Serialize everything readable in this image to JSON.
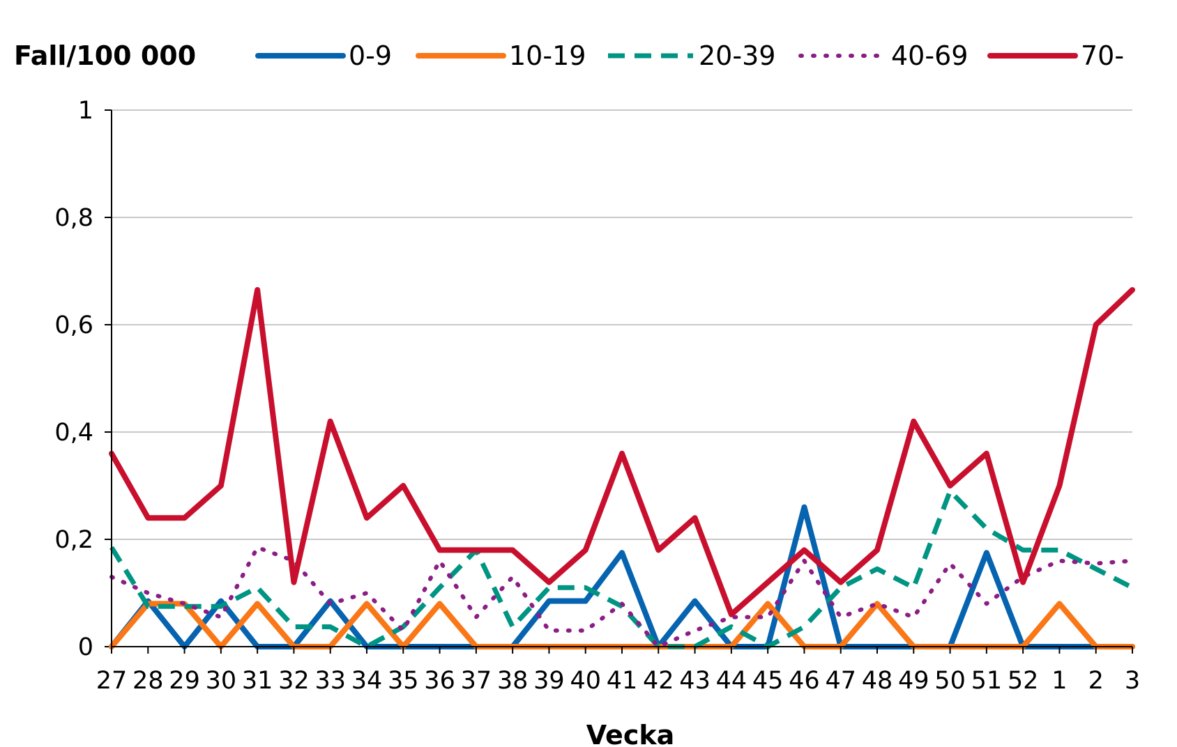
{
  "chart_data": {
    "type": "line",
    "ylabel": "Fall/100 000",
    "xlabel": "Vecka",
    "ylim": [
      0,
      1
    ],
    "yticks": [
      "0",
      "0,2",
      "0,4",
      "0,6",
      "0,8",
      "1"
    ],
    "ytick_values": [
      0,
      0.2,
      0.4,
      0.6,
      0.8,
      1
    ],
    "grid": true,
    "legend_position": "top",
    "categories": [
      "27",
      "28",
      "29",
      "30",
      "31",
      "32",
      "33",
      "34",
      "35",
      "36",
      "37",
      "38",
      "39",
      "40",
      "41",
      "42",
      "43",
      "44",
      "45",
      "46",
      "47",
      "48",
      "49",
      "50",
      "51",
      "52",
      "1",
      "2",
      "3"
    ],
    "series": [
      {
        "name": "0-9",
        "color": "#0563B0",
        "style": "solid",
        "values": [
          0,
          0.085,
          0,
          0.085,
          0,
          0,
          0.085,
          0,
          0,
          0,
          0,
          0,
          0.085,
          0.085,
          0.175,
          0,
          0.085,
          0,
          0,
          0.26,
          0,
          0,
          0,
          0,
          0.175,
          0,
          0,
          0,
          0
        ]
      },
      {
        "name": "10-19",
        "color": "#F97716",
        "style": "solid",
        "values": [
          0,
          0.08,
          0.08,
          0,
          0.08,
          0,
          0,
          0.08,
          0,
          0.08,
          0,
          0,
          0,
          0,
          0,
          0,
          0,
          0,
          0.08,
          0,
          0,
          0.08,
          0,
          0,
          0,
          0,
          0.08,
          0,
          0
        ]
      },
      {
        "name": "20-39",
        "color": "#009483",
        "style": "dashed",
        "values": [
          0.185,
          0.075,
          0.075,
          0.075,
          0.11,
          0.037,
          0.037,
          0,
          0.037,
          0.11,
          0.18,
          0.037,
          0.11,
          0.11,
          0.075,
          0,
          0,
          0.037,
          0,
          0.037,
          0.11,
          0.145,
          0.11,
          0.29,
          0.22,
          0.18,
          0.18,
          0.145,
          0.11
        ]
      },
      {
        "name": "40-69",
        "color": "#8B1D85",
        "style": "dotted",
        "values": [
          0.13,
          0.1,
          0.08,
          0.055,
          0.185,
          0.16,
          0.08,
          0.1,
          0.03,
          0.16,
          0.055,
          0.13,
          0.03,
          0.03,
          0.08,
          0,
          0.03,
          0.055,
          0.055,
          0.16,
          0.055,
          0.08,
          0.055,
          0.155,
          0.08,
          0.13,
          0.16,
          0.155,
          0.16
        ]
      },
      {
        "name": "70-",
        "color": "#C8102E",
        "style": "solid",
        "values": [
          0.36,
          0.24,
          0.24,
          0.3,
          0.665,
          0.12,
          0.42,
          0.24,
          0.3,
          0.18,
          0.18,
          0.18,
          0.12,
          0.18,
          0.36,
          0.18,
          0.24,
          0.06,
          0.12,
          0.18,
          0.12,
          0.18,
          0.42,
          0.3,
          0.36,
          0.12,
          0.3,
          0.6,
          0.665
        ]
      }
    ]
  }
}
